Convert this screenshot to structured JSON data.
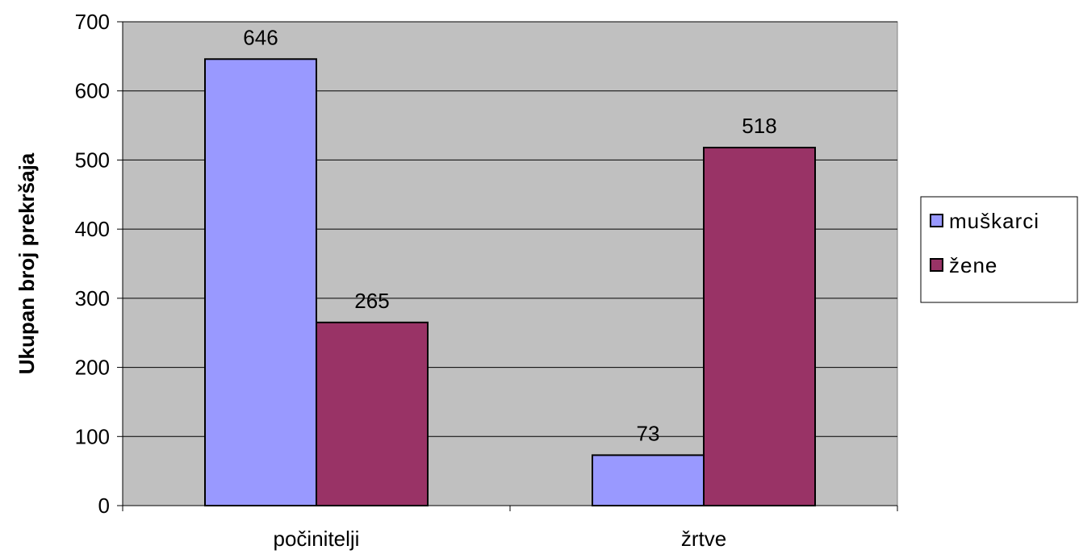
{
  "chart_data": {
    "type": "bar",
    "title": "",
    "xlabel": "",
    "ylabel": "Ukupan broj prekršaja",
    "categories": [
      "počinitelji",
      "žrtve"
    ],
    "series": [
      {
        "name": "muškarci",
        "values": [
          646,
          73
        ],
        "color": "#9999ff"
      },
      {
        "name": "žene",
        "values": [
          265,
          518
        ],
        "color": "#993366"
      }
    ],
    "ylim": [
      0,
      700
    ],
    "yticks": [
      0,
      100,
      200,
      300,
      400,
      500,
      600,
      700
    ],
    "grid": true,
    "plot_background": "#c0c0c0",
    "legend_position": "right",
    "data_labels": true
  }
}
